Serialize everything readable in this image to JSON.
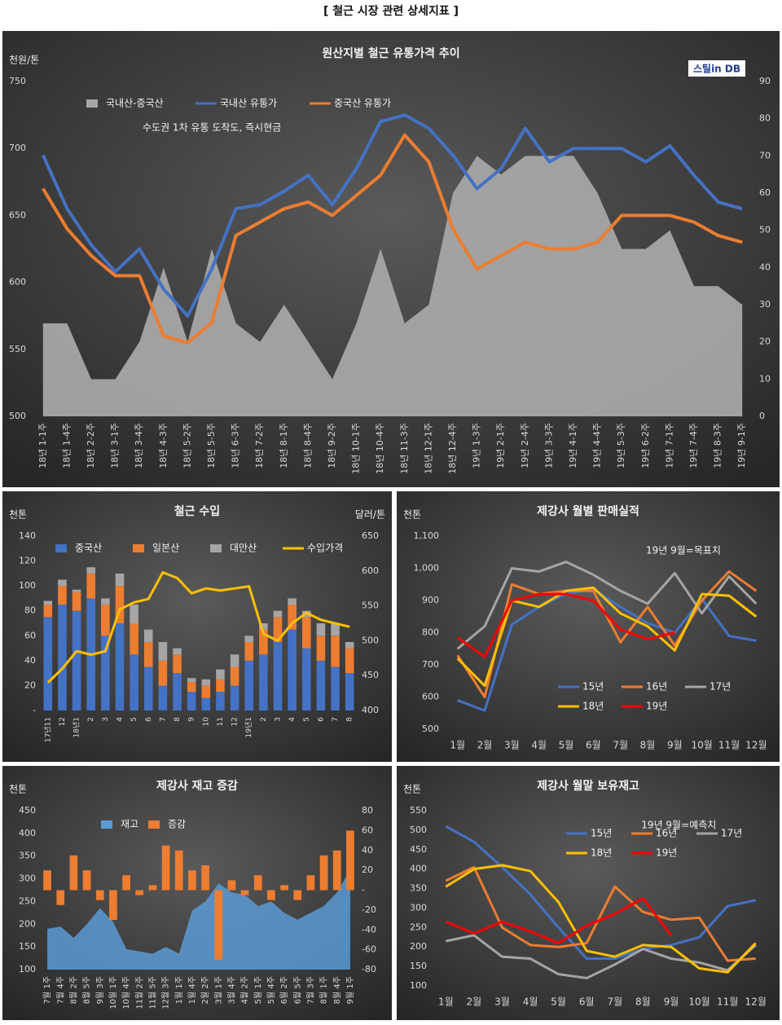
{
  "heading": "[ 철근 시장 관련 상세지표 ]",
  "chart_data": [
    {
      "type": "line",
      "title": "원산지별 철근 유통가격 추이",
      "subtitle": "수도권 1차 유통 도착도, 즉시현금",
      "logo": "스틸in DB",
      "ylabel": "천원/톤",
      "categories": [
        "18년 1-1주",
        "18년 1-4주",
        "18년 2-2주",
        "18년 3-1주",
        "18년 3-4주",
        "18년 4-3주",
        "18년 5-2주",
        "18년 5-5주",
        "18년 6-3주",
        "18년 7-2주",
        "18년 8-1주",
        "18년 8-4주",
        "18년 9-2주",
        "18년 10-1주",
        "18년 10-4주",
        "18년 11-3주",
        "18년 12-1주",
        "18년 12-4주",
        "19년 1-3주",
        "19년 2-1주",
        "19년 2-4주",
        "19년 3-3주",
        "19년 4-1주",
        "19년 4-4주",
        "19년 5-3주",
        "19년 6-2주",
        "19년 7-1주",
        "19년 7-4주",
        "19년 8-3주",
        "19년 9-1주"
      ],
      "series": [
        {
          "name": "국내산-중국산",
          "type": "area",
          "axis": "y2",
          "color": "#a6a6a6",
          "values": [
            25,
            25,
            10,
            10,
            20,
            40,
            20,
            45,
            25,
            20,
            30,
            20,
            10,
            25,
            45,
            25,
            30,
            60,
            70,
            65,
            70,
            70,
            70,
            60,
            45,
            45,
            50,
            35,
            35,
            30
          ]
        },
        {
          "name": "국내산 유통가",
          "color": "#4472c4",
          "values": [
            695,
            655,
            628,
            608,
            625,
            595,
            575,
            610,
            655,
            658,
            668,
            680,
            658,
            685,
            720,
            725,
            715,
            695,
            670,
            685,
            715,
            690,
            700,
            700,
            700,
            690,
            702,
            680,
            660,
            655
          ]
        },
        {
          "name": "중국산 유통가",
          "color": "#ed7d31",
          "values": [
            670,
            640,
            620,
            605,
            605,
            560,
            555,
            570,
            635,
            645,
            655,
            660,
            650,
            665,
            680,
            710,
            690,
            640,
            610,
            620,
            630,
            625,
            625,
            630,
            650,
            650,
            650,
            645,
            635,
            630
          ]
        }
      ],
      "ylim": [
        500,
        750
      ],
      "yticks": [
        500,
        550,
        600,
        650,
        700,
        750
      ],
      "y2lim": [
        0,
        90
      ],
      "y2ticks": [
        0,
        10,
        20,
        30,
        40,
        50,
        60,
        70,
        80,
        90
      ],
      "grid": false
    },
    {
      "type": "bar",
      "stacked": true,
      "title": "철근 수입",
      "ylabel": "천톤",
      "y2label": "달러/톤",
      "categories": [
        "17년11",
        "12",
        "18년1",
        "2",
        "3",
        "4",
        "5",
        "6",
        "7",
        "8",
        "9",
        "10",
        "11",
        "12",
        "19년1",
        "2",
        "3",
        "4",
        "5",
        "6",
        "7",
        "8"
      ],
      "series": [
        {
          "name": "중국산",
          "color": "#4472c4",
          "values": [
            75,
            85,
            80,
            90,
            60,
            70,
            45,
            35,
            20,
            30,
            15,
            10,
            15,
            20,
            40,
            45,
            55,
            65,
            50,
            40,
            35,
            30
          ]
        },
        {
          "name": "일본산",
          "color": "#ed7d31",
          "values": [
            10,
            15,
            15,
            20,
            25,
            30,
            25,
            20,
            20,
            15,
            8,
            10,
            10,
            15,
            15,
            20,
            20,
            20,
            25,
            20,
            25,
            20
          ]
        },
        {
          "name": "대만산",
          "color": "#a5a5a5",
          "values": [
            3,
            5,
            2,
            5,
            5,
            10,
            15,
            10,
            15,
            5,
            3,
            5,
            8,
            10,
            5,
            5,
            5,
            5,
            5,
            10,
            10,
            5
          ]
        },
        {
          "name": "수입가격",
          "type": "line",
          "axis": "y2",
          "color": "#ffc000",
          "values": [
            440,
            460,
            485,
            480,
            485,
            545,
            555,
            560,
            598,
            590,
            568,
            575,
            572,
            575,
            578,
            510,
            500,
            525,
            540,
            530,
            525,
            520
          ]
        }
      ],
      "ylim": [
        0,
        140
      ],
      "yticks": [
        {
          "value": 0,
          "label": "-"
        },
        20,
        40,
        60,
        80,
        100,
        120,
        140
      ],
      "y2lim": [
        400,
        650
      ],
      "y2ticks": [
        400,
        450,
        500,
        550,
        600,
        650
      ],
      "grid": false
    },
    {
      "type": "line",
      "title": "제강사 월별 판매실적",
      "ylabel": "천톤",
      "annotation": "19년 9월=목표치",
      "categories": [
        "1월",
        "2월",
        "3월",
        "4월",
        "5월",
        "6월",
        "7월",
        "8월",
        "9월",
        "10월",
        "11월",
        "12월"
      ],
      "series": [
        {
          "name": "15년",
          "color": "#4472c4",
          "values": [
            590,
            558,
            825,
            880,
            920,
            935,
            880,
            830,
            800,
            905,
            790,
            775
          ]
        },
        {
          "name": "16년",
          "color": "#ed7d31",
          "values": [
            730,
            600,
            950,
            920,
            930,
            930,
            770,
            880,
            760,
            900,
            990,
            930
          ]
        },
        {
          "name": "17년",
          "color": "#a5a5a5",
          "values": [
            750,
            820,
            1000,
            990,
            1020,
            980,
            930,
            890,
            985,
            860,
            975,
            890
          ]
        },
        {
          "name": "18년",
          "color": "#ffc000",
          "values": [
            720,
            635,
            900,
            880,
            930,
            940,
            860,
            820,
            745,
            920,
            915,
            850
          ]
        },
        {
          "name": "19년",
          "color": "#ff0000",
          "values": [
            785,
            725,
            900,
            920,
            920,
            900,
            810,
            780,
            800,
            null,
            null,
            null
          ]
        }
      ],
      "ylim": [
        500,
        1100
      ],
      "yticks": [
        500,
        600,
        700,
        800,
        900,
        {
          "value": 1000,
          "label": "1,000"
        },
        {
          "value": 1100,
          "label": "1,100"
        }
      ],
      "grid": false
    },
    {
      "type": "area",
      "title": "제강사 재고 증감",
      "ylabel": "천톤",
      "categories": [
        "7월 1주",
        "7월 4주",
        "8월 2주",
        "8월 5주",
        "9월 3주",
        "10월 1주",
        "10월 4주",
        "11월 2주",
        "11월 5주",
        "12월 3주",
        "1월 1주",
        "1월 4주",
        "2월 2주",
        "3월 1주",
        "3월 4주",
        "4월 2주",
        "5월 1주",
        "5월 4주",
        "6월 2주",
        "6월 5주",
        "7월 3주",
        "8월 1주",
        "8월 4주",
        "9월 1주"
      ],
      "series": [
        {
          "name": "재고",
          "color": "#5b9bd5",
          "values": [
            190,
            195,
            170,
            200,
            235,
            205,
            145,
            140,
            135,
            150,
            135,
            230,
            250,
            290,
            270,
            265,
            240,
            250,
            225,
            210,
            225,
            240,
            270,
            320
          ]
        },
        {
          "name": "증감",
          "type": "bar",
          "axis": "y2",
          "color": "#ed7d31",
          "values": [
            20,
            -15,
            35,
            20,
            -10,
            -30,
            15,
            -5,
            5,
            45,
            40,
            20,
            25,
            -70,
            10,
            -5,
            15,
            -10,
            5,
            -10,
            15,
            35,
            40,
            60
          ]
        }
      ],
      "ylim": [
        100,
        450
      ],
      "yticks": [
        100,
        150,
        200,
        250,
        300,
        350,
        400,
        450
      ],
      "y2lim": [
        -80,
        80
      ],
      "y2ticks": [
        -80,
        -60,
        -40,
        -20,
        {
          "value": 0,
          "label": "-"
        },
        20,
        40,
        60,
        80
      ],
      "grid": false
    },
    {
      "type": "line",
      "title": "제강사 월말 보유재고",
      "ylabel": "천톤",
      "annotation": "19년 9월=예측치",
      "categories": [
        "1월",
        "2월",
        "3월",
        "4월",
        "5월",
        "6월",
        "7월",
        "8월",
        "9월",
        "10월",
        "11월",
        "12월"
      ],
      "series": [
        {
          "name": "15년",
          "color": "#4472c4",
          "values": [
            510,
            470,
            405,
            335,
            250,
            170,
            170,
            195,
            205,
            225,
            305,
            320
          ]
        },
        {
          "name": "16년",
          "color": "#ed7d31",
          "values": [
            370,
            405,
            250,
            205,
            200,
            210,
            355,
            290,
            270,
            275,
            165,
            170
          ]
        },
        {
          "name": "17년",
          "color": "#a5a5a5",
          "values": [
            215,
            230,
            175,
            170,
            130,
            120,
            155,
            195,
            170,
            160,
            140,
            205
          ]
        },
        {
          "name": "18년",
          "color": "#ffc000",
          "values": [
            355,
            400,
            410,
            395,
            315,
            190,
            175,
            205,
            200,
            145,
            135,
            210
          ]
        },
        {
          "name": "19년",
          "color": "#ff0000",
          "values": [
            265,
            235,
            265,
            240,
            210,
            255,
            285,
            325,
            230,
            null,
            null,
            null
          ]
        }
      ],
      "ylim": [
        100,
        550
      ],
      "yticks": [
        100,
        150,
        200,
        250,
        300,
        350,
        400,
        450,
        500,
        550
      ],
      "grid": false
    }
  ]
}
